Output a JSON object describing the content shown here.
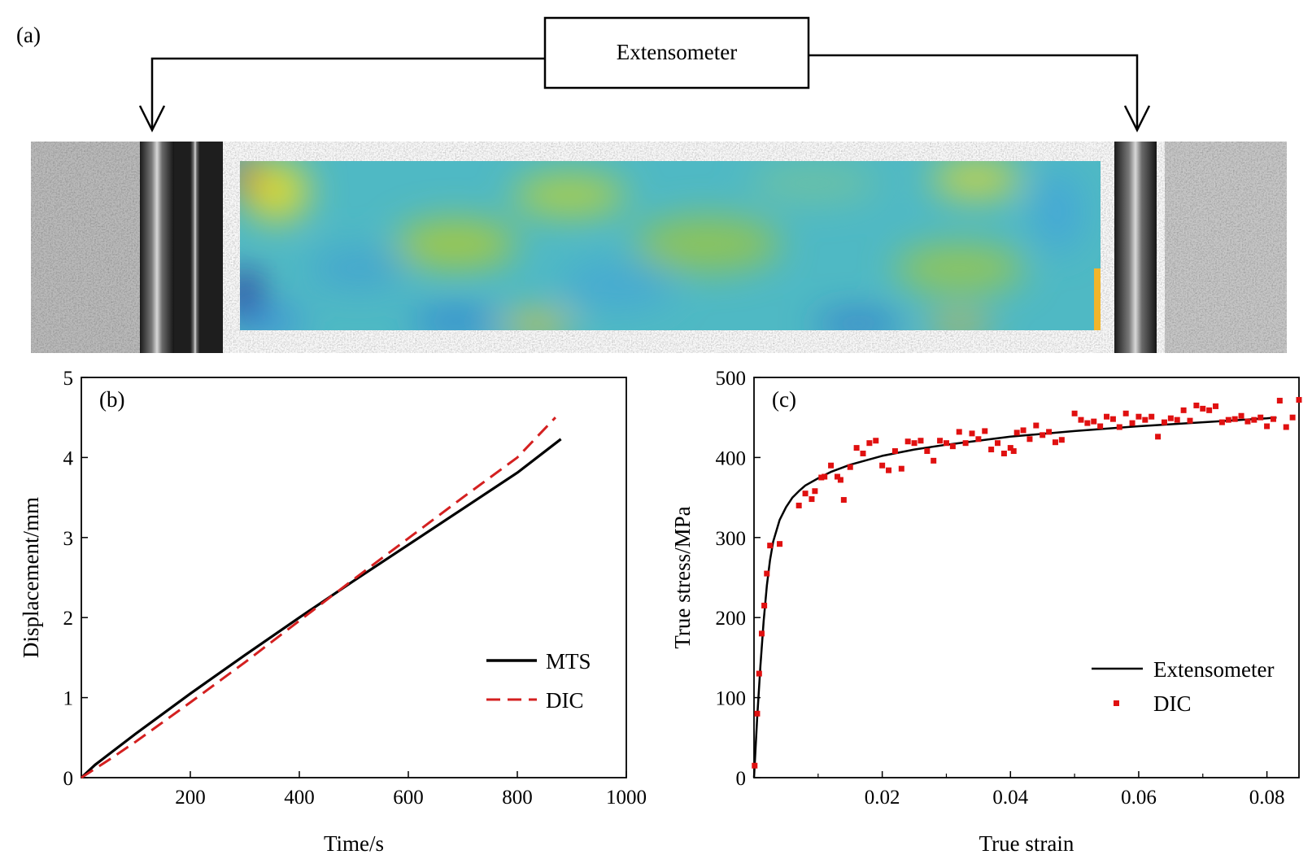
{
  "panel_a": {
    "label": "(a)",
    "extensometer_label": "Extensometer"
  },
  "colors": {
    "mts_line": "#000000",
    "dic_line": "#d42020",
    "extensometer_line": "#000000",
    "dic_points": "#e01010",
    "dic_field_base": "#4fb9c4"
  },
  "chart_data": [
    {
      "id": "b",
      "type": "line",
      "panel_label": "(b)",
      "xlabel": "Time/s",
      "ylabel": "Displacement/mm",
      "xlim": [
        0,
        1000
      ],
      "ylim": [
        0,
        5
      ],
      "xticks": [
        200,
        400,
        600,
        800,
        1000
      ],
      "yticks": [
        0,
        1,
        2,
        3,
        4,
        5
      ],
      "legend_position": "lower-right",
      "grid": false,
      "series": [
        {
          "name": "MTS",
          "style": "solid",
          "x": [
            0,
            25,
            50,
            100,
            200,
            300,
            400,
            500,
            600,
            700,
            800,
            880
          ],
          "y": [
            0,
            0.16,
            0.29,
            0.55,
            1.05,
            1.53,
            2.0,
            2.46,
            2.91,
            3.36,
            3.81,
            4.23
          ]
        },
        {
          "name": "DIC",
          "style": "dashed",
          "x": [
            0,
            50,
            100,
            200,
            300,
            400,
            500,
            600,
            700,
            800,
            870
          ],
          "y": [
            0,
            0.22,
            0.45,
            0.94,
            1.44,
            1.96,
            2.48,
            2.99,
            3.5,
            4.0,
            4.5
          ]
        }
      ]
    },
    {
      "id": "c",
      "type": "line",
      "panel_label": "(c)",
      "xlabel": "True strain",
      "ylabel": "True stress/MPa",
      "xlim": [
        0,
        0.085
      ],
      "ylim": [
        0,
        500
      ],
      "xticks": [
        0.02,
        0.04,
        0.06,
        0.08
      ],
      "xtick_labels": [
        "0.02",
        "0.04",
        "0.06",
        "0.08"
      ],
      "yticks": [
        0,
        100,
        200,
        300,
        400,
        500
      ],
      "legend_position": "lower-right",
      "grid": false,
      "series": [
        {
          "name": "Extensometer",
          "style": "solid",
          "x": [
            0.0,
            0.0005,
            0.001,
            0.0015,
            0.002,
            0.0025,
            0.003,
            0.004,
            0.005,
            0.006,
            0.007,
            0.008,
            0.01,
            0.012,
            0.015,
            0.02,
            0.025,
            0.03,
            0.04,
            0.05,
            0.06,
            0.07,
            0.08,
            0.0815
          ],
          "y": [
            0,
            75,
            140,
            195,
            240,
            272,
            295,
            322,
            338,
            350,
            358,
            365,
            374,
            382,
            391,
            402,
            410,
            416,
            426,
            433,
            439,
            444,
            449,
            450
          ]
        },
        {
          "name": "DIC",
          "style": "markers",
          "x": [
            0.0001,
            0.0005,
            0.0008,
            0.0012,
            0.0016,
            0.002,
            0.0025,
            0.004,
            0.007,
            0.008,
            0.009,
            0.0095,
            0.0105,
            0.011,
            0.012,
            0.013,
            0.0135,
            0.014,
            0.015,
            0.016,
            0.017,
            0.018,
            0.019,
            0.02,
            0.021,
            0.022,
            0.023,
            0.024,
            0.025,
            0.026,
            0.027,
            0.028,
            0.029,
            0.03,
            0.031,
            0.032,
            0.033,
            0.034,
            0.035,
            0.036,
            0.037,
            0.038,
            0.039,
            0.04,
            0.0405,
            0.041,
            0.042,
            0.043,
            0.044,
            0.045,
            0.046,
            0.047,
            0.048,
            0.05,
            0.051,
            0.052,
            0.053,
            0.054,
            0.055,
            0.056,
            0.057,
            0.058,
            0.059,
            0.06,
            0.061,
            0.062,
            0.063,
            0.064,
            0.065,
            0.066,
            0.067,
            0.068,
            0.069,
            0.07,
            0.071,
            0.072,
            0.073,
            0.074,
            0.075,
            0.076,
            0.077,
            0.078,
            0.079,
            0.08,
            0.081,
            0.082,
            0.083,
            0.084,
            0.085
          ],
          "y": [
            15,
            80,
            130,
            180,
            215,
            255,
            290,
            292,
            340,
            355,
            348,
            358,
            375,
            376,
            390,
            376,
            372,
            347,
            388,
            412,
            405,
            418,
            421,
            390,
            384,
            408,
            386,
            420,
            418,
            421,
            408,
            396,
            421,
            418,
            414,
            432,
            418,
            430,
            423,
            433,
            410,
            418,
            405,
            412,
            408,
            431,
            434,
            423,
            440,
            428,
            432,
            419,
            422,
            455,
            447,
            443,
            445,
            439,
            451,
            448,
            438,
            455,
            443,
            451,
            447,
            451,
            426,
            444,
            449,
            447,
            459,
            446,
            465,
            461,
            459,
            464,
            444,
            447,
            448,
            452,
            445,
            447,
            450,
            439,
            448,
            471,
            438,
            450,
            472
          ]
        }
      ]
    }
  ]
}
